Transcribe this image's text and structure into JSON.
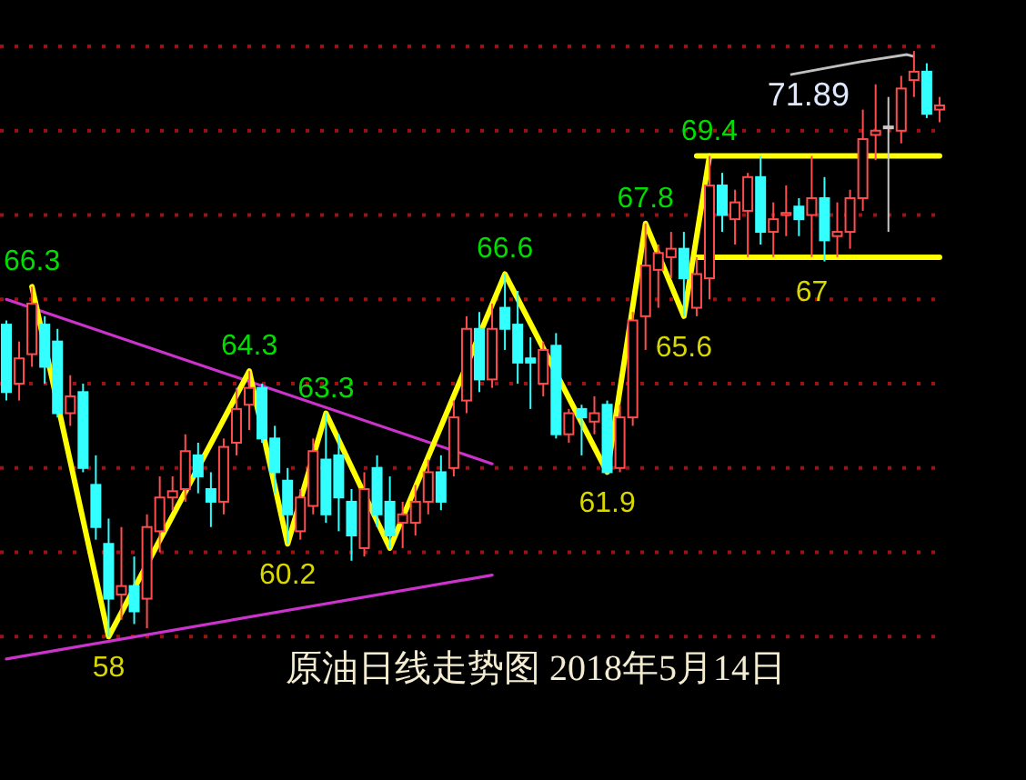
{
  "chart_data": {
    "type": "candlestick",
    "title": "原油日线走势图 2018年5月14日",
    "categories": [
      null,
      null,
      null,
      null,
      null,
      null,
      null,
      null,
      null,
      null,
      null,
      null,
      null,
      null,
      null,
      null,
      null,
      null,
      null,
      null,
      null,
      null,
      null,
      null,
      null,
      null,
      null,
      null,
      null,
      null,
      null,
      null,
      null,
      null,
      null,
      null,
      null,
      null,
      null,
      null,
      null,
      null,
      null,
      null,
      null,
      null,
      null,
      null,
      null,
      null,
      null,
      null,
      null,
      null,
      null,
      null,
      null,
      null,
      null,
      null,
      null,
      null,
      null,
      null,
      null,
      null,
      null,
      null,
      null,
      null,
      null,
      null,
      null,
      null
    ],
    "ohlc": [
      [
        65.4,
        65.5,
        63.6,
        63.8
      ],
      [
        64.0,
        65.0,
        63.6,
        64.6
      ],
      [
        64.7,
        66.3,
        64.4,
        65.9
      ],
      [
        65.4,
        65.6,
        64.0,
        64.4
      ],
      [
        65.0,
        65.3,
        63.2,
        63.3
      ],
      [
        63.3,
        64.2,
        63.0,
        63.7
      ],
      [
        63.8,
        64.0,
        61.9,
        62.0
      ],
      [
        61.6,
        62.3,
        60.3,
        60.6
      ],
      [
        60.2,
        60.8,
        58.0,
        58.9
      ],
      [
        59.0,
        60.6,
        58.4,
        59.2
      ],
      [
        59.2,
        59.9,
        58.3,
        58.6
      ],
      [
        58.9,
        60.9,
        58.2,
        60.6
      ],
      [
        60.5,
        61.8,
        60.0,
        61.3
      ],
      [
        61.3,
        61.8,
        61.0,
        61.45
      ],
      [
        61.5,
        62.8,
        61.2,
        62.4
      ],
      [
        62.3,
        62.6,
        61.4,
        61.8
      ],
      [
        61.5,
        61.9,
        60.6,
        61.2
      ],
      [
        61.2,
        62.7,
        60.9,
        62.5
      ],
      [
        62.6,
        63.9,
        62.3,
        63.4
      ],
      [
        63.5,
        64.3,
        62.9,
        63.9
      ],
      [
        63.9,
        64.0,
        62.6,
        62.7
      ],
      [
        62.7,
        63.0,
        61.4,
        61.9
      ],
      [
        61.7,
        62.0,
        60.2,
        60.9
      ],
      [
        60.5,
        61.5,
        60.3,
        61.3
      ],
      [
        61.1,
        62.7,
        60.9,
        62.4
      ],
      [
        62.2,
        63.3,
        60.7,
        60.9
      ],
      [
        62.3,
        62.8,
        60.5,
        61.3
      ],
      [
        61.2,
        61.5,
        59.8,
        60.4
      ],
      [
        60.1,
        61.9,
        59.9,
        61.5
      ],
      [
        62.0,
        62.3,
        60.6,
        60.9
      ],
      [
        61.2,
        61.8,
        60.1,
        60.4
      ],
      [
        60.7,
        61.2,
        60.1,
        60.9
      ],
      [
        60.7,
        61.6,
        60.4,
        61.2
      ],
      [
        61.2,
        62.2,
        60.9,
        61.9
      ],
      [
        61.9,
        62.3,
        61.0,
        61.2
      ],
      [
        62.0,
        63.6,
        61.8,
        63.2
      ],
      [
        63.6,
        65.6,
        63.3,
        65.3
      ],
      [
        65.3,
        65.7,
        63.8,
        64.1
      ],
      [
        64.1,
        65.9,
        63.9,
        65.3
      ],
      [
        65.8,
        66.6,
        64.8,
        65.3
      ],
      [
        65.4,
        66.2,
        64.0,
        64.5
      ],
      [
        64.6,
        65.1,
        63.4,
        64.5
      ],
      [
        64.0,
        65.0,
        63.7,
        64.8
      ],
      [
        64.9,
        65.2,
        62.7,
        62.8
      ],
      [
        62.8,
        63.4,
        62.6,
        63.3
      ],
      [
        63.4,
        63.5,
        62.3,
        63.2
      ],
      [
        63.1,
        63.7,
        62.8,
        63.3
      ],
      [
        63.5,
        63.6,
        61.9,
        61.9
      ],
      [
        62.0,
        63.5,
        61.9,
        63.2
      ],
      [
        63.2,
        65.7,
        63.0,
        65.5
      ],
      [
        65.6,
        67.8,
        64.8,
        66.8
      ],
      [
        66.7,
        67.3,
        65.8,
        67.1
      ],
      [
        67.0,
        67.6,
        66.5,
        67.2
      ],
      [
        67.2,
        67.6,
        65.6,
        66.5
      ],
      [
        65.8,
        67.0,
        65.6,
        66.6
      ],
      [
        66.5,
        69.4,
        66.0,
        68.7
      ],
      [
        68.7,
        69.0,
        67.6,
        68.0
      ],
      [
        67.9,
        68.6,
        67.3,
        68.3
      ],
      [
        68.1,
        69.0,
        67.0,
        68.9
      ],
      [
        68.9,
        69.4,
        67.3,
        67.6
      ],
      [
        67.6,
        68.3,
        67.0,
        67.9
      ],
      [
        68.0,
        68.7,
        67.5,
        68.05
      ],
      [
        68.2,
        68.4,
        67.5,
        67.9
      ],
      [
        68.0,
        69.4,
        67.0,
        68.4
      ],
      [
        68.4,
        68.9,
        66.9,
        67.4
      ],
      [
        67.5,
        68.3,
        67.0,
        67.6
      ],
      [
        67.6,
        68.6,
        67.2,
        68.4
      ],
      [
        68.4,
        70.5,
        68.1,
        69.8
      ],
      [
        69.9,
        71.1,
        69.3,
        70.0
      ],
      [
        70.1,
        70.8,
        67.6,
        70.1
      ],
      [
        70.0,
        71.3,
        69.7,
        71.0
      ],
      [
        71.2,
        71.89,
        70.8,
        71.4
      ],
      [
        71.4,
        71.6,
        70.3,
        70.4
      ],
      [
        70.5,
        70.8,
        70.2,
        70.6
      ]
    ],
    "colors": [
      "#33ffff",
      "#ff4d4d",
      "#ff4d4d",
      "#33ffff",
      "#33ffff",
      "#ff4d4d",
      "#33ffff",
      "#33ffff",
      "#33ffff",
      "#ff4d4d",
      "#33ffff",
      "#ff4d4d",
      "#ff4d4d",
      "#ff4d4d",
      "#ff4d4d",
      "#33ffff",
      "#33ffff",
      "#ff4d4d",
      "#ff4d4d",
      "#ff4d4d",
      "#33ffff",
      "#33ffff",
      "#33ffff",
      "#ff4d4d",
      "#ff4d4d",
      "#33ffff",
      "#33ffff",
      "#33ffff",
      "#ff4d4d",
      "#33ffff",
      "#33ffff",
      "#ff4d4d",
      "#ff4d4d",
      "#ff4d4d",
      "#33ffff",
      "#ff4d4d",
      "#ff4d4d",
      "#33ffff",
      "#ff4d4d",
      "#33ffff",
      "#33ffff",
      "#33ffff",
      "#ff4d4d",
      "#33ffff",
      "#ff4d4d",
      "#33ffff",
      "#ff4d4d",
      "#33ffff",
      "#ff4d4d",
      "#ff4d4d",
      "#ff4d4d",
      "#ff4d4d",
      "#ff4d4d",
      "#33ffff",
      "#ff4d4d",
      "#ff4d4d",
      "#33ffff",
      "#ff4d4d",
      "#ff4d4d",
      "#33ffff",
      "#ff4d4d",
      "#ff4d4d",
      "#33ffff",
      "#ff4d4d",
      "#33ffff",
      "#ff4d4d",
      "#ff4d4d",
      "#ff4d4d",
      "#ff4d4d",
      "#c8c8c8",
      "#ff4d4d",
      "#ff4d4d",
      "#33ffff",
      "#ff4d4d"
    ],
    "ylim": [
      54.6,
      73.1
    ],
    "yticks": [
      {
        "value": 58,
        "label": null
      },
      {
        "value": 60,
        "label": null
      },
      {
        "value": 62,
        "label": null
      },
      {
        "value": 64,
        "label": null
      },
      {
        "value": 66,
        "label": null
      },
      {
        "value": 68,
        "label": null
      },
      {
        "value": 70,
        "label": null
      },
      {
        "value": 72,
        "label": null
      }
    ],
    "tick_labels": false,
    "grid": "y",
    "series": [
      {
        "type": "line",
        "color": "#cc33cc",
        "values": [
          66.0,
          null,
          null,
          null,
          null,
          null,
          null,
          null,
          null,
          null,
          null,
          null,
          null,
          null,
          null,
          null,
          null,
          null,
          null,
          null,
          null,
          null,
          null,
          null,
          null,
          null,
          null,
          null,
          null,
          null,
          null,
          null,
          null,
          null,
          null,
          null,
          null,
          null,
          62.1,
          null,
          null,
          null,
          null,
          null,
          null,
          null,
          null,
          null,
          null,
          null,
          null,
          null,
          null,
          null,
          null,
          null,
          null,
          null,
          null,
          null,
          null,
          null,
          null,
          null,
          null,
          null,
          null,
          null,
          null,
          null,
          null,
          null,
          null,
          null
        ]
      },
      {
        "type": "line",
        "color": "#cc33cc",
        "values": [
          57.47,
          null,
          null,
          null,
          null,
          null,
          null,
          null,
          null,
          null,
          null,
          null,
          null,
          null,
          null,
          null,
          null,
          null,
          null,
          null,
          null,
          null,
          null,
          null,
          null,
          null,
          null,
          null,
          null,
          null,
          null,
          null,
          null,
          null,
          null,
          null,
          null,
          null,
          59.46,
          null,
          null,
          null,
          null,
          null,
          null,
          null,
          null,
          null,
          null,
          null,
          null,
          null,
          null,
          null,
          null,
          null,
          null,
          null,
          null,
          null,
          null,
          null,
          null,
          null,
          null,
          null,
          null,
          null,
          null,
          null,
          null,
          null,
          null,
          null
        ]
      },
      {
        "type": "line",
        "color": "#ffff00",
        "values": [
          null,
          null,
          66.3,
          null,
          null,
          null,
          null,
          null,
          58,
          null,
          null,
          null,
          null,
          null,
          null,
          null,
          null,
          null,
          null,
          64.3,
          null,
          null,
          60.2,
          null,
          null,
          63.3,
          null,
          null,
          null,
          null,
          60.1,
          null,
          null,
          null,
          null,
          null,
          null,
          null,
          null,
          66.6,
          null,
          null,
          null,
          null,
          null,
          null,
          null,
          61.9,
          null,
          null,
          67.8,
          null,
          null,
          65.6,
          null,
          69.4,
          null,
          null,
          null,
          null,
          null,
          null,
          null,
          null,
          null,
          null,
          null,
          null,
          null,
          null,
          null,
          null,
          null,
          null
        ],
        "value_labels": [
          null,
          null,
          "66.3",
          null,
          null,
          null,
          null,
          null,
          "58",
          null,
          null,
          null,
          null,
          null,
          null,
          null,
          null,
          null,
          null,
          "64.3",
          null,
          null,
          "60.2",
          null,
          null,
          "63.3",
          null,
          null,
          null,
          null,
          null,
          null,
          null,
          null,
          null,
          null,
          null,
          null,
          null,
          "66.6",
          null,
          null,
          null,
          null,
          null,
          null,
          null,
          "61.9",
          null,
          null,
          "67.8",
          null,
          null,
          "65.6",
          null,
          "69.4",
          null,
          null,
          null,
          null,
          null,
          null,
          null,
          null,
          null,
          null,
          null,
          null,
          null,
          null,
          null,
          null,
          null,
          null
        ]
      },
      {
        "type": "line",
        "color": "#ffff00",
        "values": [
          null,
          null,
          null,
          null,
          null,
          null,
          null,
          null,
          null,
          null,
          null,
          null,
          null,
          null,
          null,
          null,
          null,
          null,
          null,
          null,
          null,
          null,
          null,
          null,
          null,
          null,
          null,
          null,
          null,
          null,
          null,
          null,
          null,
          null,
          null,
          null,
          null,
          null,
          null,
          null,
          null,
          null,
          null,
          null,
          null,
          null,
          null,
          null,
          null,
          null,
          null,
          null,
          null,
          null,
          69.4,
          null,
          null,
          null,
          null,
          null,
          null,
          null,
          null,
          null,
          null,
          null,
          null,
          null,
          null,
          null,
          null,
          null,
          null,
          69.4
        ]
      },
      {
        "type": "line",
        "color": "#ffff00",
        "values": [
          null,
          null,
          null,
          null,
          null,
          null,
          null,
          null,
          null,
          null,
          null,
          null,
          null,
          null,
          null,
          null,
          null,
          null,
          null,
          null,
          null,
          null,
          null,
          null,
          null,
          null,
          null,
          null,
          null,
          null,
          null,
          null,
          null,
          null,
          null,
          null,
          null,
          null,
          null,
          null,
          null,
          null,
          null,
          null,
          null,
          null,
          null,
          null,
          null,
          null,
          null,
          null,
          null,
          null,
          67,
          null,
          null,
          null,
          null,
          null,
          null,
          null,
          null,
          67,
          null,
          null,
          null,
          null,
          null,
          null,
          null,
          null,
          null,
          67
        ],
        "value_labels": [
          null,
          null,
          null,
          null,
          null,
          null,
          null,
          null,
          null,
          null,
          null,
          null,
          null,
          null,
          null,
          null,
          null,
          null,
          null,
          null,
          null,
          null,
          null,
          null,
          null,
          null,
          null,
          null,
          null,
          null,
          null,
          null,
          null,
          null,
          null,
          null,
          null,
          null,
          null,
          null,
          null,
          null,
          null,
          null,
          null,
          null,
          null,
          null,
          null,
          null,
          null,
          null,
          null,
          null,
          null,
          null,
          null,
          null,
          null,
          null,
          null,
          null,
          null,
          "67",
          null,
          null,
          null,
          null,
          null,
          null,
          null,
          null,
          null,
          null
        ]
      }
    ],
    "annotations": [
      "71.89"
    ]
  }
}
